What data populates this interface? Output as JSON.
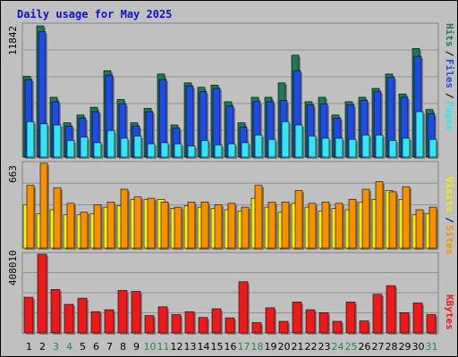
{
  "window": {
    "title": "Daily usage for May 2025"
  },
  "colors": {
    "hits": "#1a7a5a",
    "files": "#1e4be6",
    "pages": "#30e6f0",
    "visits": "#f7f000",
    "sites": "#f79000",
    "kbytes": "#ee1a1a",
    "weekend_tick": "#1a8a4a",
    "weekday_tick": "#000000",
    "title": "#1010c8",
    "panel": "#c0c0c0"
  },
  "chart_data": [
    {
      "type": "bar",
      "panel": "hits-files-pages",
      "y_axis_label": "11842",
      "ylim": [
        0,
        11842
      ],
      "legend": [
        "Pages",
        "Files",
        "Hits"
      ],
      "legend_placement": "right",
      "categories": [
        "1",
        "2",
        "3",
        "4",
        "5",
        "6",
        "7",
        "8",
        "9",
        "10",
        "11",
        "12",
        "13",
        "14",
        "15",
        "16",
        "17",
        "18",
        "19",
        "20",
        "21",
        "22",
        "23",
        "24",
        "25",
        "26",
        "27",
        "28",
        "29",
        "30",
        "31"
      ],
      "series": [
        {
          "name": "Hits",
          "values": [
            7300,
            11842,
            5400,
            3100,
            3800,
            4500,
            7800,
            5200,
            3100,
            4400,
            7500,
            2900,
            6700,
            6300,
            6500,
            5000,
            3100,
            5400,
            5400,
            6700,
            9200,
            5000,
            5400,
            3800,
            5000,
            5400,
            6200,
            7500,
            5700,
            9800,
            4300
          ]
        },
        {
          "name": "Files",
          "values": [
            7000,
            11300,
            5000,
            2800,
            3500,
            4100,
            7400,
            4800,
            2800,
            4100,
            7000,
            2600,
            6400,
            5900,
            6200,
            4600,
            2700,
            5000,
            5000,
            5100,
            7800,
            4700,
            4800,
            3500,
            4700,
            5100,
            5900,
            7200,
            5400,
            9100,
            3900
          ]
        },
        {
          "name": "Pages",
          "values": [
            3200,
            3000,
            2900,
            1500,
            1800,
            1300,
            2400,
            1700,
            1900,
            1200,
            1300,
            1200,
            1000,
            1500,
            1100,
            1200,
            1300,
            2000,
            1600,
            3200,
            2900,
            1900,
            1700,
            1700,
            1600,
            2000,
            2000,
            1500,
            1700,
            4100,
            1600
          ]
        }
      ],
      "tick_labels": [
        "Pages",
        "/",
        "Files",
        "/",
        "Hits"
      ]
    },
    {
      "type": "bar",
      "panel": "visits-sites",
      "y_axis_label": "663",
      "ylim": [
        0,
        663
      ],
      "legend": [
        "Sites",
        "Visits"
      ],
      "legend_placement": "right",
      "categories": [
        "1",
        "2",
        "3",
        "4",
        "5",
        "6",
        "7",
        "8",
        "9",
        "10",
        "11",
        "12",
        "13",
        "14",
        "15",
        "16",
        "17",
        "18",
        "19",
        "20",
        "21",
        "22",
        "23",
        "24",
        "25",
        "26",
        "27",
        "28",
        "29",
        "30",
        "31"
      ],
      "series": [
        {
          "name": "Visits",
          "values": [
            340,
            270,
            300,
            260,
            260,
            270,
            320,
            330,
            380,
            380,
            380,
            310,
            330,
            320,
            310,
            300,
            290,
            390,
            320,
            280,
            350,
            320,
            290,
            310,
            300,
            360,
            380,
            450,
            380,
            260,
            270
          ]
        },
        {
          "name": "Sites",
          "values": [
            490,
            663,
            470,
            350,
            280,
            340,
            360,
            460,
            400,
            390,
            360,
            320,
            360,
            360,
            340,
            350,
            320,
            490,
            360,
            360,
            450,
            350,
            360,
            350,
            380,
            460,
            520,
            440,
            480,
            300,
            320
          ]
        }
      ]
    },
    {
      "type": "bar",
      "panel": "kbytes",
      "y_axis_label": "408010",
      "ylim": [
        0,
        408010
      ],
      "legend": [
        "KBytes"
      ],
      "legend_placement": "right",
      "categories": [
        "1",
        "2",
        "3",
        "4",
        "5",
        "6",
        "7",
        "8",
        "9",
        "10",
        "11",
        "12",
        "13",
        "14",
        "15",
        "16",
        "17",
        "18",
        "19",
        "20",
        "21",
        "22",
        "23",
        "24",
        "25",
        "26",
        "27",
        "28",
        "29",
        "30",
        "31"
      ],
      "series": [
        {
          "name": "KBytes",
          "values": [
            185000,
            408010,
            225000,
            148000,
            180000,
            110000,
            120000,
            220000,
            215000,
            90000,
            135000,
            95000,
            110000,
            80000,
            125000,
            78000,
            265000,
            53000,
            130000,
            60000,
            160000,
            120000,
            105000,
            60000,
            160000,
            62000,
            200000,
            245000,
            105000,
            155000,
            95000
          ]
        }
      ]
    }
  ]
}
